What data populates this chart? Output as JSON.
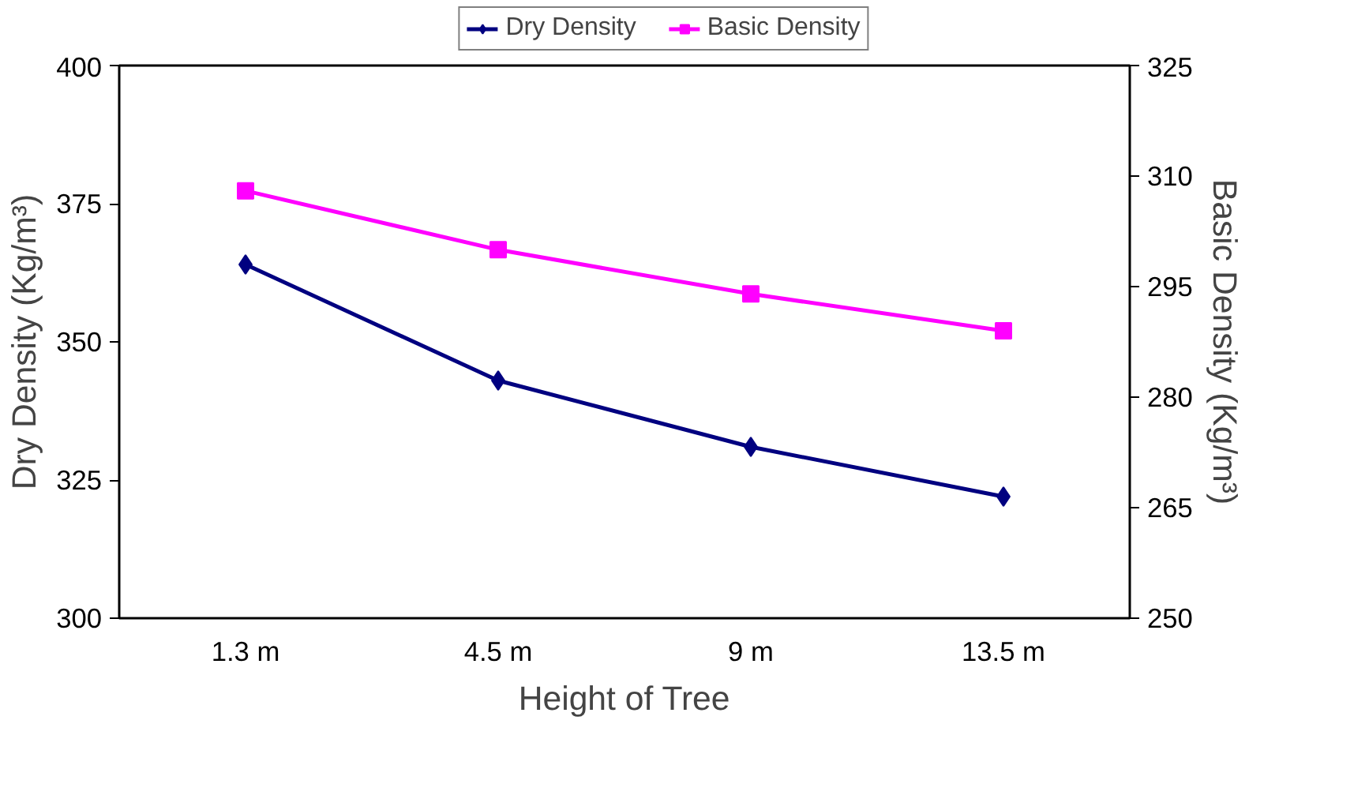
{
  "chart_data": {
    "type": "line",
    "xlabel": "Height of Tree",
    "ylabel": "Dry Density (Kg/m³)",
    "y2label": "Basic Density (Kg/m³)",
    "categories": [
      "1.3 m",
      "4.5 m",
      "9 m",
      "13.5 m"
    ],
    "series": [
      {
        "name": "Dry Density",
        "color": "#000080",
        "marker": "diamond",
        "values": [
          364,
          343,
          331,
          322
        ]
      },
      {
        "name": "Basic Density",
        "color": "#ff00ff",
        "marker": "square",
        "axis": "y2",
        "values": [
          308,
          300,
          294,
          289
        ]
      }
    ],
    "ylim": [
      300,
      400
    ],
    "yticks": [
      300,
      325,
      350,
      375,
      400
    ],
    "y2lim": [
      250,
      325
    ],
    "y2ticks": [
      250,
      265,
      280,
      295,
      310,
      325
    ],
    "grid": false,
    "legend": "top",
    "line_style": "solid"
  }
}
